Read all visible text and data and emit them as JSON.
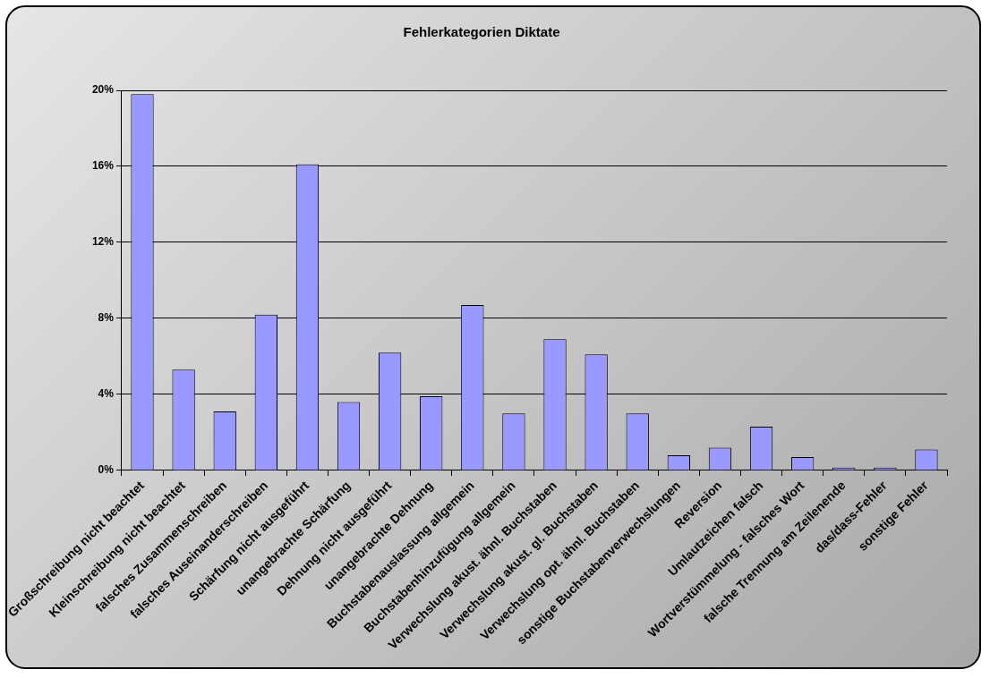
{
  "chart_data": {
    "type": "bar",
    "title": "Fehlerkategorien Diktate",
    "categories": [
      "Großschreibung nicht beachtet",
      "Kleinschreibung nicht beachtet",
      "falsches Zusammenschreiben",
      "falsches Auseinanderschreiben",
      "Schärfung nicht ausgeführt",
      "unangebrachte Schärfung",
      "Dehnung nicht ausgeführt",
      "unangebrachte Dehnung",
      "Buchstabenauslassung allgemein",
      "Buchstabenhinzufügung allgemein",
      "Verwechslung akust. ähnl. Buchstaben",
      "Verwechslung akust. gl. Buchstaben",
      "Verwechslung opt. ähnl. Buchstaben",
      "sonstige Buchstabenverwechslungen",
      "Reversion",
      "Umlautzeichen falsch",
      "Wortverstümmelung - falsches Wort",
      "falsche Trennung am Zeilenende",
      "das/dass-Fehler",
      "sonstige Fehler"
    ],
    "values": [
      19.8,
      5.3,
      3.1,
      8.2,
      16.1,
      3.6,
      6.2,
      3.9,
      8.7,
      3.0,
      6.9,
      6.1,
      3.0,
      0.8,
      1.2,
      2.3,
      0.7,
      0.15,
      0.15,
      1.1
    ],
    "color": "#9999ff",
    "ylim": [
      0,
      20
    ],
    "yticks": [
      {
        "value": 0,
        "label": "0%"
      },
      {
        "value": 4,
        "label": "4%"
      },
      {
        "value": 8,
        "label": "8%"
      },
      {
        "value": 12,
        "label": "12%"
      },
      {
        "value": 16,
        "label": "16%"
      },
      {
        "value": 20,
        "label": "20%"
      }
    ],
    "grid": "y",
    "legend": false
  }
}
